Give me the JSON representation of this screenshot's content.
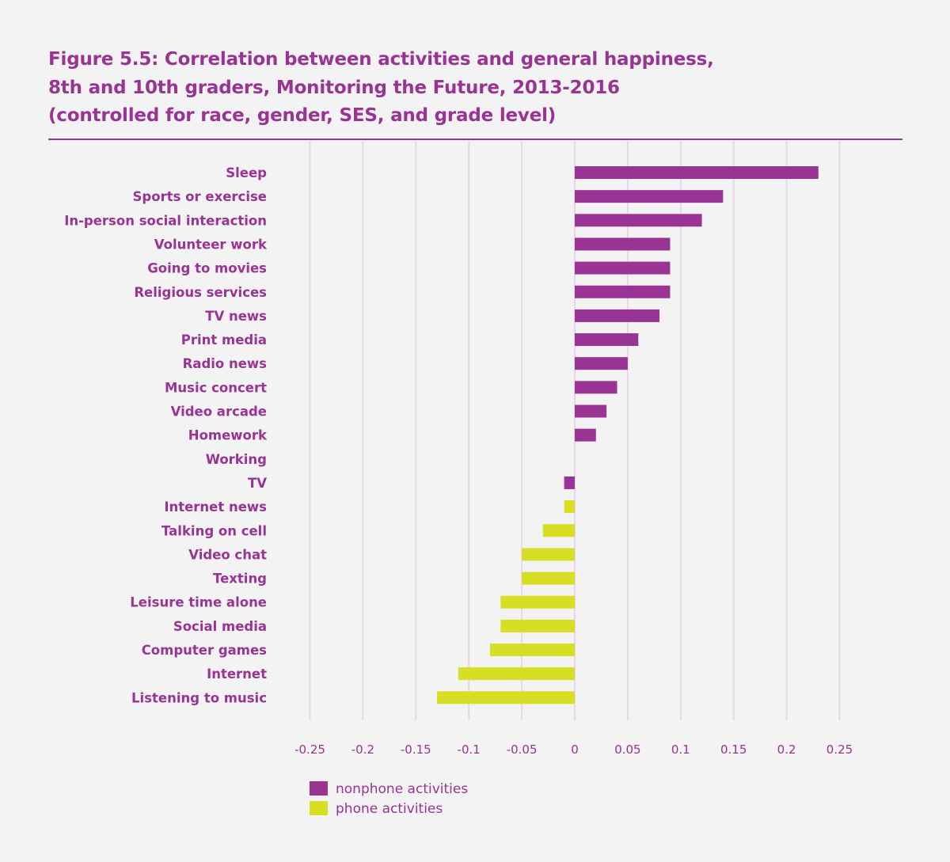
{
  "chart_data": {
    "type": "bar",
    "orientation": "horizontal",
    "title": "Figure 5.5: Correlation between activities and general happiness, 8th and 10th graders, Monitoring the Future, 2013-2016 (controlled for race, gender, SES, and grade level)",
    "title_lines": [
      "Figure 5.5: Correlation between activities and general happiness,",
      "8th and 10th graders, Monitoring the Future, 2013-2016",
      "(controlled for race, gender, SES, and grade level)"
    ],
    "xlabel": "",
    "ylabel": "",
    "xlim": [
      -0.25,
      0.25
    ],
    "xticks": [
      -0.25,
      -0.2,
      -0.15,
      -0.1,
      -0.05,
      0,
      0.05,
      0.1,
      0.15,
      0.2,
      0.25
    ],
    "xtick_labels": [
      "-0.25",
      "-0.2",
      "-0.15",
      "-0.1",
      "-0.05",
      "0",
      "0.05",
      "0.1",
      "0.15",
      "0.2",
      "0.25"
    ],
    "grid": "vertical",
    "legend_position": "bottom-left",
    "colors": {
      "nonphone": "#993394",
      "phone": "#d6df23",
      "grid": "#e8d6e8"
    },
    "series": [
      {
        "name": "nonphone activities",
        "key": "nonphone"
      },
      {
        "name": "phone activities",
        "key": "phone"
      }
    ],
    "bars": [
      {
        "category": "Sleep",
        "value": 0.23,
        "series": "nonphone"
      },
      {
        "category": "Sports or exercise",
        "value": 0.14,
        "series": "nonphone"
      },
      {
        "category": "In-person social interaction",
        "value": 0.12,
        "series": "nonphone"
      },
      {
        "category": "Volunteer work",
        "value": 0.09,
        "series": "nonphone"
      },
      {
        "category": "Going to movies",
        "value": 0.09,
        "series": "nonphone"
      },
      {
        "category": "Religious services",
        "value": 0.09,
        "series": "nonphone"
      },
      {
        "category": "TV news",
        "value": 0.08,
        "series": "nonphone"
      },
      {
        "category": "Print media",
        "value": 0.06,
        "series": "nonphone"
      },
      {
        "category": "Radio news",
        "value": 0.05,
        "series": "nonphone"
      },
      {
        "category": "Music concert",
        "value": 0.04,
        "series": "nonphone"
      },
      {
        "category": "Video arcade",
        "value": 0.03,
        "series": "nonphone"
      },
      {
        "category": "Homework",
        "value": 0.02,
        "series": "nonphone"
      },
      {
        "category": "Working",
        "value": 0,
        "series": "nonphone"
      },
      {
        "category": "TV",
        "value": -0.01,
        "series": "nonphone"
      },
      {
        "category": "Internet news",
        "value": -0.01,
        "series": "phone"
      },
      {
        "category": "Talking on cell",
        "value": -0.03,
        "series": "phone"
      },
      {
        "category": "Video chat",
        "value": -0.05,
        "series": "phone"
      },
      {
        "category": "Texting",
        "value": -0.05,
        "series": "phone"
      },
      {
        "category": "Leisure time alone",
        "value": -0.07,
        "series": "phone"
      },
      {
        "category": "Social media",
        "value": -0.07,
        "series": "phone"
      },
      {
        "category": "Computer games",
        "value": -0.08,
        "series": "phone"
      },
      {
        "category": "Internet",
        "value": -0.11,
        "series": "phone"
      },
      {
        "category": "Listening to music",
        "value": -0.13,
        "series": "phone"
      }
    ]
  }
}
